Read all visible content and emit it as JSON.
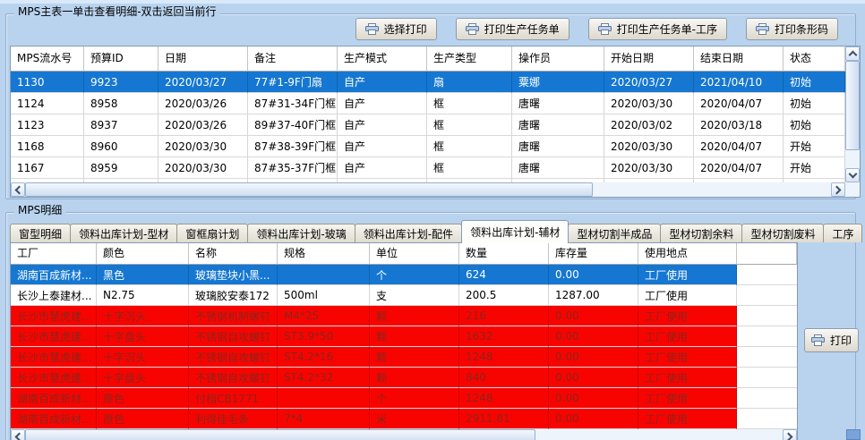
{
  "colors": {
    "selected_row_bg": "#1577d2",
    "selected_row_text": "#ffffff",
    "alert_row_bg": "#f80400",
    "alert_row_text": "#8c241c",
    "window_bg": "#b9d3ee"
  },
  "mps_main": {
    "title": "MPS主表一单击查看明细-双击返回当前行",
    "toolbar": {
      "select_print": "选择打印",
      "print_task": "打印生产任务单",
      "print_task_process": "打印生产任务单-工序",
      "print_barcode": "打印条形码"
    },
    "table": {
      "columns": [
        "MPS流水号",
        "预算ID",
        "日期",
        "备注",
        "生产模式",
        "生产类型",
        "操作员",
        "开始日期",
        "结束日期",
        "状态"
      ],
      "rows": [
        {
          "state": "selected",
          "cells": [
            "1130",
            "9923",
            "2020/03/27",
            "77#1-9F门扇",
            "自产",
            "扇",
            "粟娜",
            "2020/03/27",
            "2021/04/10",
            "初始"
          ]
        },
        {
          "state": "normal",
          "cells": [
            "1124",
            "8958",
            "2020/03/26",
            "87#31-34F门框",
            "自产",
            "框",
            "唐曙",
            "2020/03/30",
            "2020/04/07",
            "初始"
          ]
        },
        {
          "state": "normal",
          "cells": [
            "1123",
            "8937",
            "2020/03/26",
            "89#37-40F门框",
            "自产",
            "框",
            "唐曙",
            "2020/03/02",
            "2020/03/18",
            "初始"
          ]
        },
        {
          "state": "normal",
          "cells": [
            "1168",
            "8960",
            "2020/03/30",
            "87#38-39F门框",
            "自产",
            "框",
            "唐曙",
            "2020/03/30",
            "2020/04/07",
            "开始"
          ]
        },
        {
          "state": "normal",
          "cells": [
            "1167",
            "8959",
            "2020/03/30",
            "87#35-37F门框",
            "自产",
            "框",
            "唐曙",
            "2020/03/30",
            "2020/04/07",
            "开始"
          ]
        }
      ]
    }
  },
  "mps_detail": {
    "title": "MPS明细",
    "tabs": [
      {
        "label": "窗型明细",
        "selected": false
      },
      {
        "label": "领料出库计划-型材",
        "selected": false
      },
      {
        "label": "窗框扇计划",
        "selected": false
      },
      {
        "label": "领料出库计划-玻璃",
        "selected": false
      },
      {
        "label": "领料出库计划-配件",
        "selected": false
      },
      {
        "label": "领料出库计划-辅材",
        "selected": true
      },
      {
        "label": "型材切割半成品",
        "selected": false
      },
      {
        "label": "型材切割余料",
        "selected": false
      },
      {
        "label": "型材切割废料",
        "selected": false
      },
      {
        "label": "工序",
        "selected": false
      }
    ],
    "print_button": "打印",
    "table": {
      "columns": [
        "工厂",
        "颜色",
        "名称",
        "规格",
        "单位",
        "数量",
        "库存量",
        "使用地点"
      ],
      "rows": [
        {
          "state": "selected",
          "cells": [
            "湖南百成新材...",
            "黑色",
            "玻璃垫块小黑...",
            "",
            "个",
            "624",
            "0.00",
            "工厂使用"
          ]
        },
        {
          "state": "normal",
          "cells": [
            "长沙上泰建材...",
            "N2.75",
            "玻璃胶安泰172",
            "500ml",
            "支",
            "200.5",
            "1287.00",
            "工厂使用"
          ]
        },
        {
          "state": "alert",
          "cells": [
            "长沙市慧虎建...",
            "十字沉头",
            "不锈钢机制螺钉",
            "M4*25",
            "颗",
            "216",
            "0.00",
            "工厂使用"
          ]
        },
        {
          "state": "alert",
          "cells": [
            "长沙市慧虎建...",
            "十字盘头",
            "不锈钢自攻螺钉",
            "ST3.9*50",
            "颗",
            "1632",
            "0.00",
            "工厂使用"
          ]
        },
        {
          "state": "alert",
          "cells": [
            "长沙市慧虎建...",
            "十字沉头",
            "不锈钢自攻螺钉",
            "ST4.2*16",
            "颗",
            "1248",
            "0.00",
            "工厂使用"
          ]
        },
        {
          "state": "alert",
          "cells": [
            "长沙市慧虎建...",
            "十字盘头",
            "不锈钢自攻螺钉",
            "ST4.2*32",
            "颗",
            "840",
            "0.00",
            "工厂使用"
          ]
        },
        {
          "state": "alert",
          "cells": [
            "湖南百成新材...",
            "原色",
            "付档CB1771",
            "",
            "个",
            "1248",
            "0.00",
            "工厂使用"
          ]
        },
        {
          "state": "alert",
          "cells": [
            "湖南百成新材...",
            "原色",
            "利得佳毛条",
            "7*4",
            "米",
            "2911.81",
            "0.00",
            "工厂使用"
          ]
        }
      ]
    }
  }
}
